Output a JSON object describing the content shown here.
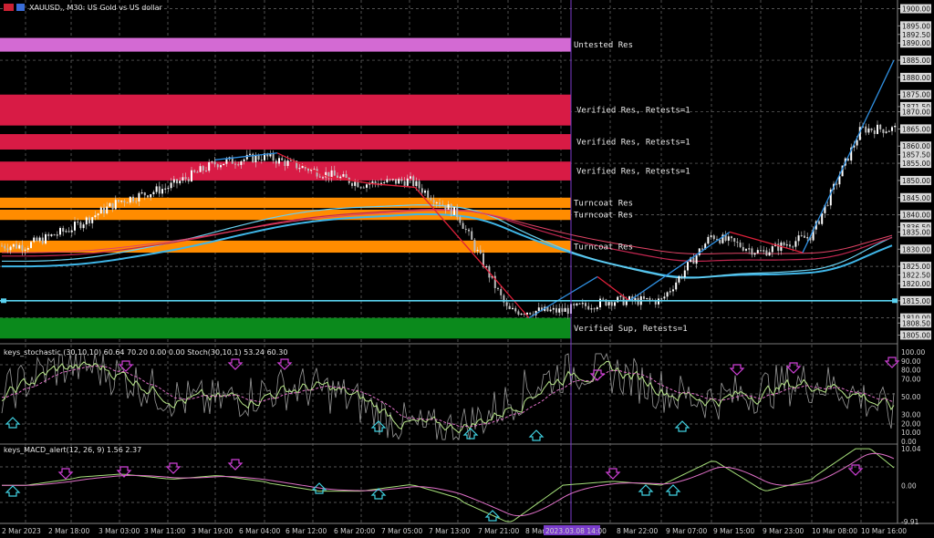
{
  "header": {
    "symbol_title": "XAUUSD,, M30: US Gold vs US dollar"
  },
  "main_panel": {
    "price_ticks": [
      "1900.00",
      "1895.00",
      "1892.50",
      "1890.00",
      "1885.00",
      "1880.00",
      "1875.00",
      "1871.50",
      "1870.00",
      "1865.00",
      "1860.00",
      "1857.50",
      "1855.00",
      "1850.00",
      "1845.00",
      "1840.00",
      "1836.50",
      "1835.00",
      "1830.00",
      "1825.00",
      "1822.50",
      "1820.00",
      "1815.00",
      "1810.00",
      "1808.50",
      "1805.00"
    ],
    "zones": [
      {
        "label": "Untested Res",
        "color": "#d36ad3",
        "from": 1887.5,
        "to": 1891.5
      },
      {
        "label": "Verified Res, Retests=1",
        "color": "#d81b45",
        "from": 1866.0,
        "to": 1875.0
      },
      {
        "label": "Verified Res, Retests=1",
        "color": "#d81b45",
        "from": 1859.0,
        "to": 1863.5
      },
      {
        "label": "Verified Res, Retests=1",
        "color": "#d81b45",
        "from": 1850.0,
        "to": 1855.5
      },
      {
        "label": "Turncoat Res",
        "color": "#ff8c00",
        "from": 1842.0,
        "to": 1845.0
      },
      {
        "label": "Turncoat Res",
        "color": "#ff8c00",
        "from": 1838.5,
        "to": 1841.5
      },
      {
        "label": "Turncoat Res",
        "color": "#ff8c00",
        "from": 1829.0,
        "to": 1832.5
      },
      {
        "label": "Verified Sup, Retests=1",
        "color": "#0b8a1c",
        "from": 1804.0,
        "to": 1810.0
      }
    ],
    "support_line_price": 1815.0,
    "current_price": "1865.00"
  },
  "stoch_panel": {
    "title": "keys_stochastic (30,10,10) 60.64 70.20 0.00 0.00 Stoch(30,10,1) 53.24 60.30",
    "ticks": [
      "100.00",
      "90.00",
      "80.00",
      "70.00",
      "50.00",
      "30.00",
      "20.00",
      "10.00",
      "0.00"
    ]
  },
  "macd_panel": {
    "title": "keys_MACD_alert(12, 26, 9) 1.56 2.37",
    "ticks": [
      "10.04",
      "0.00",
      "-9.91"
    ]
  },
  "time_axis": {
    "labels": [
      "2 Mar 2023",
      "2 Mar 18:00",
      "3 Mar 03:00",
      "3 Mar 11:00",
      "3 Mar 19:00",
      "6 Mar 04:00",
      "6 Mar 12:00",
      "6 Mar 20:00",
      "7 Mar 05:00",
      "7 Mar 13:00",
      "7 Mar 21:00",
      "8 Mar 06:00",
      "8 Mar 22:00",
      "9 Mar 07:00",
      "9 Mar 15:00",
      "9 Mar 23:00",
      "10 Mar 08:00",
      "10 Mar 16:00"
    ],
    "highlight": "2023.03.08 14:00"
  },
  "chart_data": {
    "type": "line",
    "title": "XAUUSD,, M30: US Gold vs US dollar",
    "x": [
      "2 Mar 2023",
      "2 Mar 18:00",
      "3 Mar 03:00",
      "3 Mar 11:00",
      "3 Mar 19:00",
      "6 Mar 04:00",
      "6 Mar 12:00",
      "6 Mar 20:00",
      "7 Mar 05:00",
      "7 Mar 13:00",
      "7 Mar 21:00",
      "8 Mar 06:00",
      "8 Mar 22:00",
      "9 Mar 07:00",
      "9 Mar 15:00",
      "9 Mar 23:00",
      "10 Mar 08:00",
      "10 Mar 16:00"
    ],
    "series": [
      {
        "values": [
          1831,
          1836,
          1844,
          1848,
          1855,
          1857,
          1853,
          1849,
          1850,
          1840,
          1812,
          1812,
          1815,
          1815,
          1834,
          1829,
          1834,
          1865
        ]
      }
    ],
    "ylim": [
      1803,
      1902
    ],
    "colors": {
      "background": "#000000",
      "bull_candle": "#ffffff",
      "bear_candle": "#ffffff",
      "grid": "#888888",
      "support_line": "#5ad2f0"
    }
  }
}
